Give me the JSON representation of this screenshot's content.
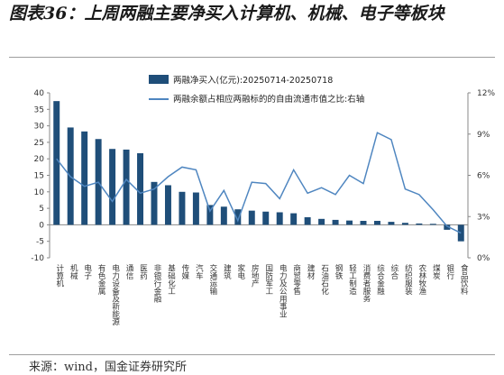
{
  "title": "图表36：上周两融主要净买入计算机、机械、电子等板块",
  "source": "来源：wind，国金证券研究所",
  "colors": {
    "bar": "#1f4e79",
    "line": "#4f86c0",
    "axis": "#888888"
  },
  "chart_data": {
    "type": "bar",
    "categories": [
      "计算机",
      "机械",
      "电子",
      "有色金属",
      "电力设备及新能源",
      "通信",
      "医药",
      "非银行金融",
      "基础化工",
      "传媒",
      "汽车",
      "交通运输",
      "建筑",
      "家电",
      "房地产",
      "国防军工",
      "电力及公用事业",
      "商贸零售",
      "建材",
      "石油石化",
      "钢铁",
      "轻工制造",
      "消费者服务",
      "综合金融",
      "综合",
      "纺织服装",
      "农林牧渔",
      "煤炭",
      "银行",
      "食品饮料"
    ],
    "series": [
      {
        "name": "两融净买入(亿元):20250714-20250718",
        "axis": "left",
        "values": [
          37.5,
          29.5,
          28.3,
          26.0,
          23.0,
          22.8,
          21.7,
          13.0,
          12.0,
          10.0,
          9.8,
          6.0,
          5.5,
          4.7,
          4.3,
          4.0,
          3.8,
          3.5,
          2.3,
          1.8,
          1.5,
          1.3,
          1.2,
          1.2,
          0.9,
          0.6,
          0.4,
          0.3,
          -1.5,
          -5.0
        ]
      },
      {
        "name": "两融余额占相应两融标的的自由流通市值之比:右轴",
        "axis": "right",
        "values": [
          7.2,
          5.9,
          5.2,
          5.5,
          4.1,
          5.7,
          4.7,
          5.0,
          5.9,
          6.6,
          6.4,
          3.4,
          4.9,
          2.7,
          5.5,
          5.4,
          4.3,
          6.4,
          4.7,
          5.1,
          4.6,
          6.0,
          5.4,
          9.1,
          8.6,
          5.0,
          4.6,
          3.5,
          2.3,
          1.8
        ]
      }
    ],
    "ylim": [
      -10,
      40
    ],
    "yticks": [
      "-10",
      "-5",
      "0",
      "5",
      "10",
      "15",
      "20",
      "25",
      "30",
      "35",
      "40"
    ],
    "y2lim": [
      0,
      12
    ],
    "y2ticks": [
      "0%",
      "3%",
      "6%",
      "9%",
      "12%"
    ],
    "legend": "top-center",
    "grid": false
  }
}
